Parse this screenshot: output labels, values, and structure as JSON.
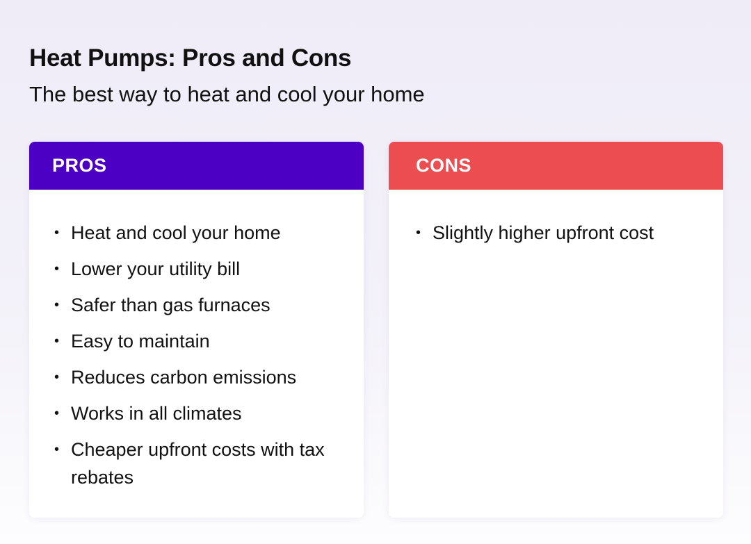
{
  "title": "Heat Pumps: Pros and Cons",
  "subtitle": "The best way to heat and cool your home",
  "colors": {
    "pros": "#4b00c3",
    "cons": "#ec4d50"
  },
  "pros": {
    "heading": "PROS",
    "items": [
      "Heat and cool your home",
      "Lower your utility bill",
      "Safer than gas furnaces",
      "Easy to maintain",
      "Reduces carbon emissions",
      "Works in all climates",
      "Cheaper upfront costs with tax rebates"
    ]
  },
  "cons": {
    "heading": "CONS",
    "items": [
      "Slightly higher upfront cost"
    ]
  }
}
